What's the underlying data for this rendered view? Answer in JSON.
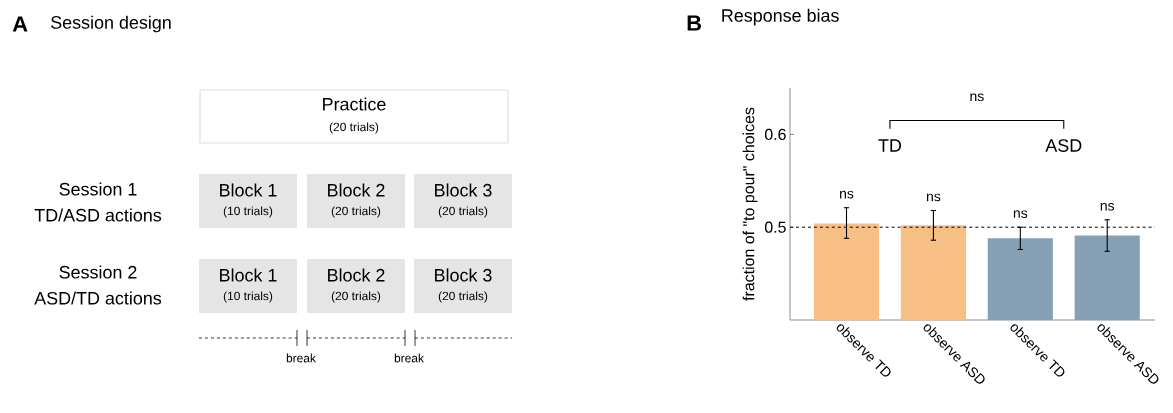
{
  "chart_data": [
    {
      "type": "other",
      "title": "Session design",
      "annotations": [
        "A",
        "Practice",
        "(20 trials)",
        "Session 1",
        "TD/ASD actions",
        "Block 1",
        "(10 trials)",
        "Block 2",
        "(20 trials)",
        "Block 3",
        "(20 trials)",
        "Session 2",
        "ASD/TD actions",
        "Block 1",
        "(10 trials)",
        "Block 2",
        "(20 trials)",
        "Block 3",
        "(20 trials)",
        "break",
        "break"
      ]
    },
    {
      "type": "bar",
      "title": "Response bias",
      "ylabel": "fraction of \"to pour\" choices",
      "categories": [
        "observe TD",
        "observe ASD",
        "observe TD",
        "observe ASD"
      ],
      "values": [
        0.504,
        0.502,
        0.488,
        0.491
      ],
      "colors": [
        "#f8bf85",
        "#f8bf85",
        "#86a1b6",
        "#86a1b6"
      ],
      "errors": [
        [
          0.488,
          0.521
        ],
        [
          0.486,
          0.518
        ],
        [
          0.476,
          0.5
        ],
        [
          0.474,
          0.508
        ]
      ],
      "value_labels": [
        "ns",
        "ns",
        "ns",
        "ns"
      ],
      "ylim": [
        0.4,
        0.65
      ],
      "yticks": [
        0.5,
        0.6
      ],
      "ref_lines": [
        {
          "axis": "y",
          "value": 0.5,
          "line_style": "dashed",
          "color": "#000000"
        }
      ],
      "annotations": [
        "B",
        "TD",
        "ASD",
        "ns"
      ]
    }
  ]
}
